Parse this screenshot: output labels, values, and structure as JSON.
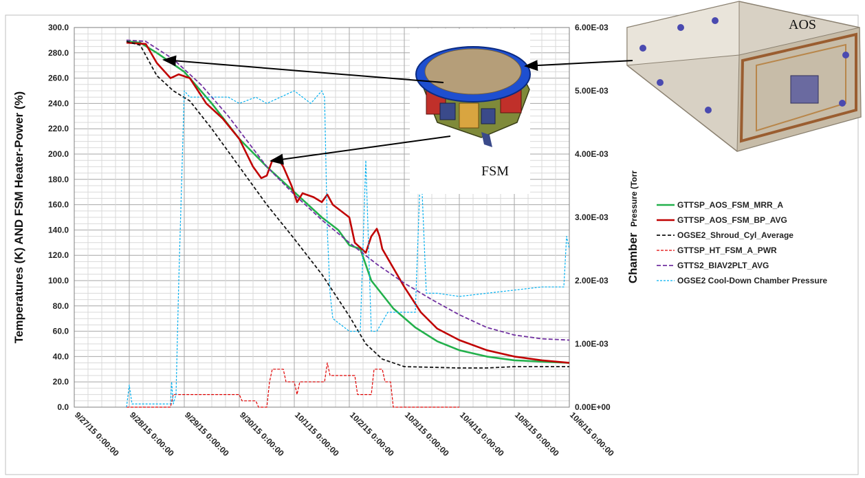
{
  "chart_data": {
    "type": "line",
    "y_left": {
      "label": "Temperatures (K) AND FSM Heater-Power (%)",
      "range": [
        0,
        300
      ],
      "ticks": [
        "0.0",
        "20.0",
        "40.0",
        "60.0",
        "80.0",
        "100.0",
        "120.0",
        "140.0",
        "160.0",
        "180.0",
        "200.0",
        "220.0",
        "240.0",
        "260.0",
        "280.0",
        "300.0"
      ]
    },
    "y_right": {
      "label_big": "Chamber",
      "label_small": "Pressure (Torr",
      "range": [
        0,
        0.006
      ],
      "ticks": [
        "0.00E+00",
        "1.00E-03",
        "2.00E-03",
        "3.00E-03",
        "4.00E-03",
        "5.00E-03",
        "6.00E-03"
      ]
    },
    "x_axis": {
      "range_days": [
        0,
        9
      ],
      "ticks": [
        "9/27/15 0:00:00",
        "9/28/15 0:00:00",
        "9/29/15 0:00:00",
        "9/30/15 0:00:00",
        "10/1/15 0:00:00",
        "10/2/15 0:00:00",
        "10/3/15 0:00:00",
        "10/4/15 0:00:00",
        "10/5/15 0:00:00",
        "10/6/15 0:00:00"
      ]
    },
    "grid": true,
    "legend_position": "right",
    "series": [
      {
        "name": "GTTSP_AOS_FSM_MRR_A",
        "color": "#22b04b",
        "width": 2.6,
        "dash": "",
        "axis": "left",
        "points": [
          [
            0.95,
            289
          ],
          [
            1.2,
            288
          ],
          [
            1.5,
            280
          ],
          [
            2.0,
            265
          ],
          [
            2.5,
            240
          ],
          [
            3.0,
            212
          ],
          [
            3.5,
            190
          ],
          [
            4.0,
            170
          ],
          [
            4.5,
            150
          ],
          [
            4.8,
            140
          ],
          [
            5.0,
            128
          ],
          [
            5.2,
            125
          ],
          [
            5.4,
            100
          ],
          [
            5.8,
            78
          ],
          [
            6.2,
            63
          ],
          [
            6.6,
            52
          ],
          [
            7.0,
            45
          ],
          [
            7.5,
            40
          ],
          [
            8.0,
            37
          ],
          [
            8.5,
            36
          ],
          [
            9.0,
            35
          ]
        ]
      },
      {
        "name": "GTTSP_AOS_FSM_BP_AVG",
        "color": "#c00000",
        "width": 2.6,
        "dash": "",
        "axis": "left",
        "points": [
          [
            0.95,
            288
          ],
          [
            1.3,
            287
          ],
          [
            1.5,
            272
          ],
          [
            1.75,
            260
          ],
          [
            1.9,
            263
          ],
          [
            2.1,
            260
          ],
          [
            2.4,
            240
          ],
          [
            2.7,
            228
          ],
          [
            3.0,
            212
          ],
          [
            3.25,
            190
          ],
          [
            3.4,
            181
          ],
          [
            3.5,
            183
          ],
          [
            3.6,
            195
          ],
          [
            3.7,
            197
          ],
          [
            3.8,
            190
          ],
          [
            3.95,
            175
          ],
          [
            4.05,
            162
          ],
          [
            4.15,
            169
          ],
          [
            4.35,
            166
          ],
          [
            4.5,
            162
          ],
          [
            4.6,
            168
          ],
          [
            4.7,
            160
          ],
          [
            5.0,
            150
          ],
          [
            5.1,
            130
          ],
          [
            5.3,
            122
          ],
          [
            5.4,
            135
          ],
          [
            5.5,
            141
          ],
          [
            5.55,
            135
          ],
          [
            5.6,
            125
          ],
          [
            5.8,
            110
          ],
          [
            6.0,
            95
          ],
          [
            6.3,
            75
          ],
          [
            6.6,
            62
          ],
          [
            7.0,
            53
          ],
          [
            7.5,
            45
          ],
          [
            8.0,
            40
          ],
          [
            8.5,
            37
          ],
          [
            9.0,
            35
          ]
        ]
      },
      {
        "name": "OGSE2_Shroud_Cyl_Average",
        "color": "#111111",
        "width": 1.8,
        "dash": "5,3",
        "axis": "left",
        "points": [
          [
            0.95,
            289
          ],
          [
            1.2,
            286
          ],
          [
            1.5,
            262
          ],
          [
            1.8,
            250
          ],
          [
            2.1,
            242
          ],
          [
            2.5,
            220
          ],
          [
            3.0,
            190
          ],
          [
            3.5,
            160
          ],
          [
            4.0,
            133
          ],
          [
            4.5,
            105
          ],
          [
            5.0,
            72
          ],
          [
            5.3,
            50
          ],
          [
            5.6,
            38
          ],
          [
            6.0,
            32
          ],
          [
            6.5,
            31.5
          ],
          [
            7.0,
            31
          ],
          [
            7.5,
            31
          ],
          [
            8.0,
            32
          ],
          [
            8.5,
            32
          ],
          [
            9.0,
            32
          ]
        ]
      },
      {
        "name": "GTTSP_HT_FSM_A_PWR",
        "color": "#e00000",
        "width": 1.2,
        "dash": "4,2",
        "axis": "left",
        "points": [
          [
            0.95,
            0
          ],
          [
            1.75,
            0
          ],
          [
            1.8,
            10
          ],
          [
            3.0,
            10
          ],
          [
            3.05,
            5
          ],
          [
            3.3,
            5
          ],
          [
            3.35,
            0
          ],
          [
            3.5,
            0
          ],
          [
            3.55,
            20
          ],
          [
            3.6,
            30
          ],
          [
            3.8,
            30
          ],
          [
            3.85,
            20
          ],
          [
            4.0,
            20
          ],
          [
            4.05,
            10
          ],
          [
            4.1,
            20
          ],
          [
            4.55,
            20
          ],
          [
            4.6,
            35
          ],
          [
            4.65,
            25
          ],
          [
            5.1,
            25
          ],
          [
            5.15,
            10
          ],
          [
            5.4,
            10
          ],
          [
            5.45,
            30
          ],
          [
            5.6,
            30
          ],
          [
            5.65,
            20
          ],
          [
            5.75,
            20
          ],
          [
            5.8,
            0
          ],
          [
            7.0,
            0
          ]
        ]
      },
      {
        "name": "GTTS2_BIAV2PLT_AVG",
        "color": "#7030a0",
        "width": 1.8,
        "dash": "6,3",
        "axis": "left",
        "points": [
          [
            0.95,
            290
          ],
          [
            1.3,
            289
          ],
          [
            1.8,
            275
          ],
          [
            2.3,
            255
          ],
          [
            2.8,
            230
          ],
          [
            3.5,
            190
          ],
          [
            4.0,
            168
          ],
          [
            4.5,
            148
          ],
          [
            5.0,
            130
          ],
          [
            5.5,
            113
          ],
          [
            6.0,
            98
          ],
          [
            6.5,
            85
          ],
          [
            7.0,
            73
          ],
          [
            7.5,
            63
          ],
          [
            8.0,
            57
          ],
          [
            8.5,
            54
          ],
          [
            9.0,
            53
          ]
        ]
      },
      {
        "name": "OGSE2 Cool-Down Chamber Pressure",
        "color": "#00b0f0",
        "width": 1.2,
        "dash": "3,2",
        "axis": "right",
        "points": [
          [
            0.95,
            0.0
          ],
          [
            1.0,
            0.00035
          ],
          [
            1.05,
            5e-05
          ],
          [
            1.5,
            5e-05
          ],
          [
            1.75,
            5e-05
          ],
          [
            1.77,
            0.0004
          ],
          [
            1.8,
            5e-05
          ],
          [
            1.85,
            0.0002
          ],
          [
            1.9,
            0.002
          ],
          [
            2.0,
            0.005
          ],
          [
            2.1,
            0.0049
          ],
          [
            2.5,
            0.0049
          ],
          [
            2.8,
            0.0049
          ],
          [
            3.0,
            0.0048
          ],
          [
            3.3,
            0.0049
          ],
          [
            3.5,
            0.0048
          ],
          [
            4.0,
            0.005
          ],
          [
            4.3,
            0.0048
          ],
          [
            4.5,
            0.005
          ],
          [
            4.55,
            0.0049
          ],
          [
            4.6,
            0.0028
          ],
          [
            4.65,
            0.0018
          ],
          [
            4.7,
            0.0014
          ],
          [
            5.0,
            0.0012
          ],
          [
            5.2,
            0.0012
          ],
          [
            5.3,
            0.0039
          ],
          [
            5.4,
            0.0012
          ],
          [
            5.5,
            0.0012
          ],
          [
            5.7,
            0.0015
          ],
          [
            6.0,
            0.0015
          ],
          [
            6.2,
            0.0015
          ],
          [
            6.3,
            0.0039
          ],
          [
            6.4,
            0.0018
          ],
          [
            6.6,
            0.0018
          ],
          [
            7.0,
            0.00175
          ],
          [
            7.5,
            0.0018
          ],
          [
            8.0,
            0.00185
          ],
          [
            8.5,
            0.0019
          ],
          [
            8.9,
            0.0019
          ],
          [
            8.95,
            0.0027
          ],
          [
            9.0,
            0.0025
          ]
        ]
      }
    ]
  },
  "images": {
    "aos_label": "AOS",
    "fsm_label": "FSM"
  }
}
